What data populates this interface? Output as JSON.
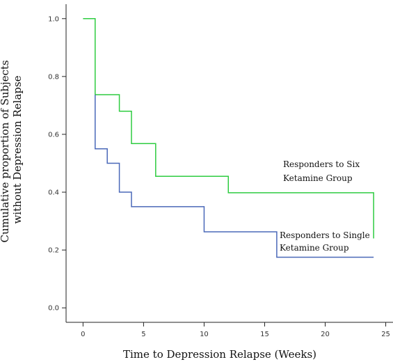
{
  "chart_data": {
    "type": "line",
    "title": "",
    "xlabel": "Time to Depression Relapse (Weeks)",
    "ylabel_lines": [
      "Cumulative proportion of Subjects",
      "without Depression Relapse"
    ],
    "xlim": [
      -1.4,
      25.6
    ],
    "ylim": [
      -0.05,
      1.05
    ],
    "x_ticks": [
      0,
      5,
      10,
      15,
      20,
      25
    ],
    "y_ticks": [
      0.0,
      0.2,
      0.4,
      0.6,
      0.8,
      1.0
    ],
    "y_tick_labels": [
      "0.0",
      "0.2",
      "0.4",
      "0.6",
      "0.8",
      "1.0"
    ],
    "grid": false,
    "series": [
      {
        "name": "Responders to Six Ketamine Group",
        "color": "#2ecc40",
        "step_points": [
          [
            0,
            1.0
          ],
          [
            1,
            0.737
          ],
          [
            3,
            0.68
          ],
          [
            4,
            0.568
          ],
          [
            6,
            0.455
          ],
          [
            12,
            0.398
          ],
          [
            24,
            0.398
          ],
          [
            24,
            0.24
          ]
        ]
      },
      {
        "name": "Responders to Single Ketamine Group",
        "color": "#4a68b8",
        "step_points": [
          [
            1,
            0.737
          ],
          [
            1,
            0.55
          ],
          [
            2,
            0.5
          ],
          [
            3,
            0.4
          ],
          [
            4,
            0.35
          ],
          [
            10,
            0.263
          ],
          [
            16,
            0.175
          ],
          [
            24,
            0.175
          ]
        ]
      }
    ],
    "annotations": [
      {
        "series": 0,
        "lines": [
          "Responders to Six",
          "Ketamine Group"
        ]
      },
      {
        "series": 1,
        "lines": [
          "Responders to Single",
          "Ketamine Group"
        ]
      }
    ]
  }
}
